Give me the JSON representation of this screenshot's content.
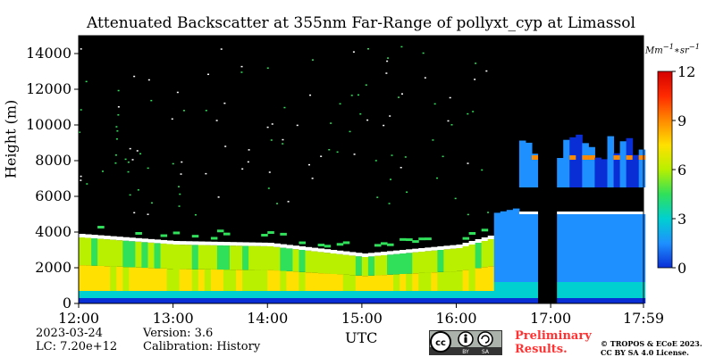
{
  "chart_data": {
    "type": "heatmap",
    "title": "Attenuated Backscatter at 355nm Far-Range of pollyxt_cyp at Limassol",
    "xlabel": "UTC",
    "ylabel": "Height (m)",
    "x_ticks": [
      "12:00",
      "13:00",
      "14:00",
      "15:00",
      "16:00",
      "17:00",
      "17:59"
    ],
    "y_ticks": [
      0,
      2000,
      4000,
      6000,
      8000,
      10000,
      12000,
      14000
    ],
    "xlim": [
      "12:00",
      "17:59"
    ],
    "ylim": [
      0,
      15000
    ],
    "colorbar": {
      "label": "Mm^-1 * sr^-1",
      "ticks": [
        0,
        3,
        6,
        9,
        12
      ],
      "range": [
        0,
        12
      ],
      "colormap": "jet",
      "colors": [
        "#0a2ed6",
        "#1e90ff",
        "#00d0d0",
        "#30e05a",
        "#b8f000",
        "#ffe000",
        "#ff8a00",
        "#ff2a00",
        "#d40000"
      ]
    },
    "features": {
      "aerosol_layer_top": {
        "12:00": 3900,
        "13:00": 3500,
        "14:00": 3400,
        "15:00": 2800,
        "16:00": 3300,
        "16:20": 3800
      },
      "high_cloud": {
        "start": "16:40",
        "end": "17:59",
        "base": 5000,
        "top": 9500
      },
      "missing_data": {
        "start": "16:52",
        "end": "17:02"
      },
      "background": "#000000"
    }
  },
  "footer": {
    "date": "2023-03-24",
    "lc": "LC: 7.20e+12",
    "version": "Version: 3.6",
    "calibration": "Calibration: History",
    "preliminary_line1": "Preliminary",
    "preliminary_line2": "Results.",
    "copyright_line1": "© TROPOS & ECoE 2023.",
    "copyright_line2": "CC BY SA 4.0 License.",
    "cc_labels": [
      "BY",
      "SA"
    ]
  }
}
